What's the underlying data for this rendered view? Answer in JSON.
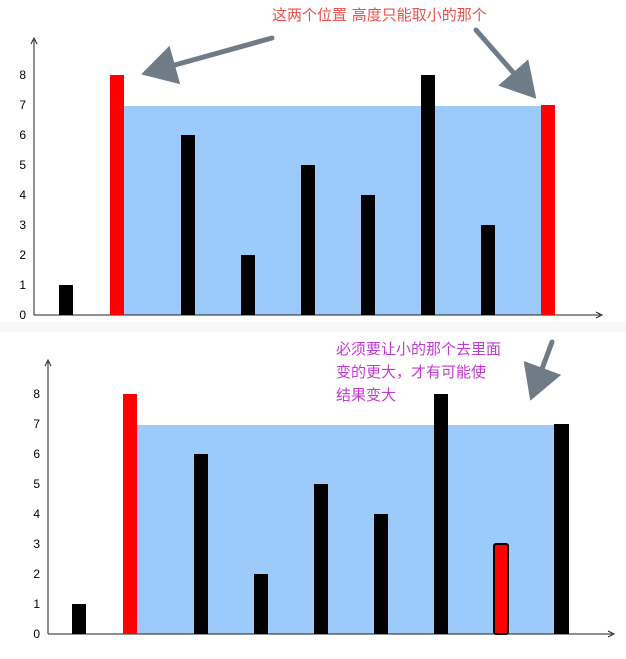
{
  "annotations": {
    "top": "这两个位置 高度只能取小的那个",
    "bottom_lines": [
      "必须要让小的那个去里面",
      "变的更大，才有可能使",
      "结果变大"
    ]
  },
  "y_ticks": [
    "0",
    "1",
    "2",
    "3",
    "4",
    "5",
    "6",
    "7",
    "8"
  ],
  "colors": {
    "bar_black": "#000000",
    "bar_red": "#ff0000",
    "water_fill": "#9ccbfb",
    "arrow": "#6f7b87",
    "top_note": "#e8504c",
    "bottom_note": "#c23ad0"
  },
  "chart_data": [
    {
      "type": "bar",
      "heights": [
        1,
        8,
        6,
        2,
        5,
        4,
        8,
        3,
        7
      ],
      "highlighted_indices": [
        1,
        8
      ],
      "water_level": 7,
      "water_between_indices": [
        1,
        8
      ],
      "ylim": [
        0,
        8
      ]
    },
    {
      "type": "bar",
      "heights": [
        1,
        8,
        6,
        2,
        5,
        4,
        8,
        3,
        7
      ],
      "highlighted_indices": [
        1,
        7
      ],
      "water_level": 7,
      "water_between_indices": [
        1,
        8
      ],
      "ylim": [
        0,
        8
      ]
    }
  ]
}
